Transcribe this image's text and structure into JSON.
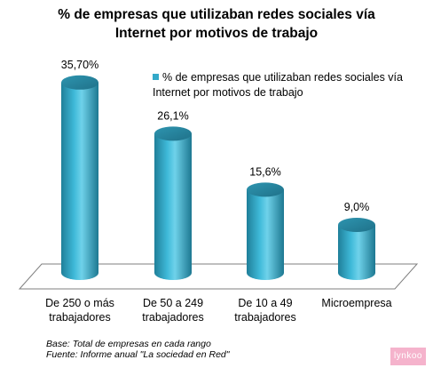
{
  "chart_data": {
    "type": "bar",
    "title_lines": [
      "% de empresas que utilizaban redes sociales vía",
      "Internet por motivos de trabajo"
    ],
    "categories": [
      [
        "De 250 o más",
        "trabajadores"
      ],
      [
        "De 50 a 249",
        "trabajadores"
      ],
      [
        "De 10 a 49",
        "trabajadores"
      ],
      [
        "Microempresa"
      ]
    ],
    "value_labels": [
      "35,70%",
      "26,1%",
      "15,6%",
      "9,0%"
    ],
    "series": [
      {
        "name": "% de empresas que utilizaban redes sociales vía Internet por motivos de trabajo",
        "values": [
          35.7,
          26.1,
          15.6,
          9.0
        ]
      }
    ],
    "legend_lines": [
      "% de empresas que utilizaban redes sociales vía",
      "Internet por motivos de trabajo"
    ],
    "ylim": [
      0,
      40
    ],
    "grid": false,
    "legend_position": "top-right",
    "bar_color": "#33a9c9"
  },
  "notes": {
    "base": "Base: Total de empresas en cada rango",
    "source": "Fuente:  Informe anual \"La sociedad en Red\""
  },
  "brand": "lynkoo"
}
